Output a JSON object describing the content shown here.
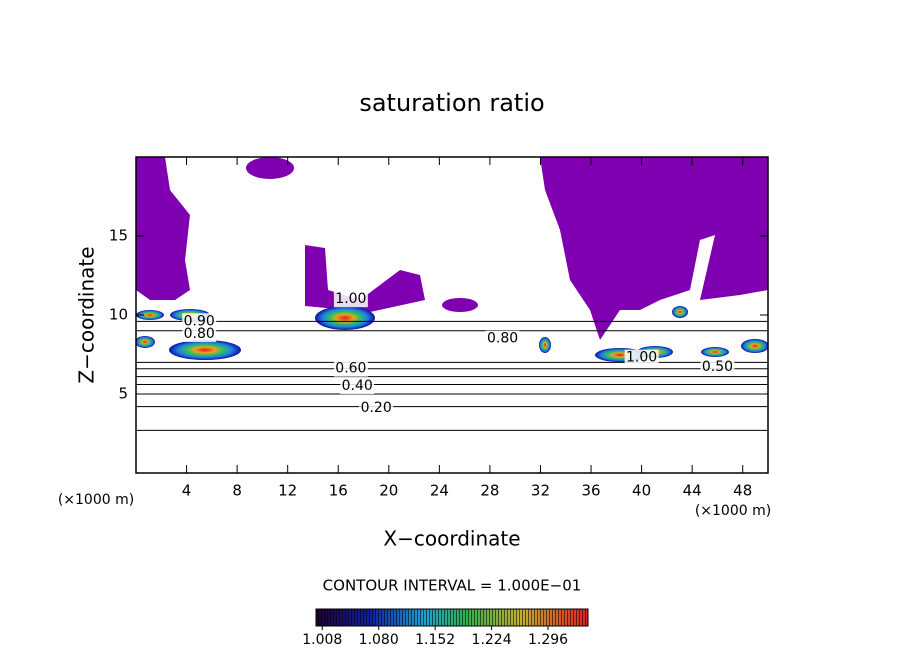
{
  "chart_data": {
    "type": "contour",
    "title": "saturation ratio",
    "xlabel": "X−coordinate",
    "ylabel": "Z−coordinate",
    "x_unit_label": "(×1000 m)",
    "x_unit_label_right": "(×1000 m)",
    "xlim": [
      0,
      50
    ],
    "ylim": [
      0,
      20
    ],
    "xticks": [
      4,
      8,
      12,
      16,
      20,
      24,
      28,
      32,
      36,
      40,
      44,
      48
    ],
    "yticks": [
      5,
      10,
      15
    ],
    "contour_interval_label": "CONTOUR INTERVAL = 1.000E−01",
    "contours": [
      {
        "level": 0.1,
        "z": 2.7
      },
      {
        "level": 0.2,
        "z": 4.2
      },
      {
        "level": 0.3,
        "z": 5.0
      },
      {
        "level": 0.4,
        "z": 5.6
      },
      {
        "level": 0.5,
        "z": 6.1
      },
      {
        "level": 0.6,
        "z": 6.6
      },
      {
        "level": 0.7,
        "z": 7.0
      },
      {
        "level": 0.8,
        "z": 9.0
      },
      {
        "level": 0.9,
        "z": 9.6
      }
    ],
    "contour_labels": [
      {
        "label": "0.20",
        "value": 0.2,
        "x": 19,
        "z": 4.1
      },
      {
        "label": "0.40",
        "value": 0.4,
        "x": 17.5,
        "z": 5.5
      },
      {
        "label": "0.60",
        "value": 0.6,
        "x": 17,
        "z": 6.6
      },
      {
        "label": "0.80",
        "value": 0.8,
        "x": 29,
        "z": 8.5
      },
      {
        "label": "1.00",
        "value": 1.0,
        "x": 17,
        "z": 11.0
      },
      {
        "label": "0.90",
        "value": 0.9,
        "x": 5,
        "z": 9.6
      },
      {
        "label": "0.80",
        "value": 0.8,
        "x": 5,
        "z": 8.8
      },
      {
        "label": "1.00",
        "value": 1.0,
        "x": 40,
        "z": 7.3
      },
      {
        "label": "0.50",
        "value": 0.5,
        "x": 46,
        "z": 6.7
      }
    ],
    "colorbar_lim": [
      1.0,
      1.347
    ],
    "colorbar_ticks": [
      {
        "value": 1.008,
        "label": "1.008"
      },
      {
        "value": 1.08,
        "label": "1.080"
      },
      {
        "value": 1.152,
        "label": "1.152"
      },
      {
        "value": 1.224,
        "label": "1.224"
      },
      {
        "value": 1.296,
        "label": "1.296"
      }
    ],
    "line_color": "#000000"
  }
}
